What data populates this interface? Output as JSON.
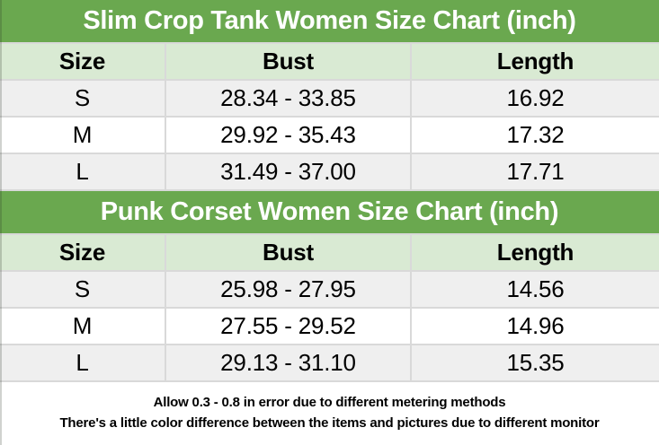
{
  "colors": {
    "title_bg": "#6aa84f",
    "title_text": "#ffffff",
    "header_bg": "#d9ead3",
    "row_alt_bg": "#efefef",
    "row_bg": "#ffffff",
    "border": "#d9d9d9",
    "text": "#000000"
  },
  "charts": [
    {
      "title": "Slim Crop Tank Women Size Chart (inch)",
      "columns": [
        "Size",
        "Bust",
        "Length"
      ],
      "rows": [
        {
          "size": "S",
          "bust": "28.34 - 33.85",
          "length": "16.92"
        },
        {
          "size": "M",
          "bust": "29.92 - 35.43",
          "length": "17.32"
        },
        {
          "size": "L",
          "bust": "31.49 - 37.00",
          "length": "17.71"
        }
      ]
    },
    {
      "title": "Punk Corset Women Size Chart (inch)",
      "columns": [
        "Size",
        "Bust",
        "Length"
      ],
      "rows": [
        {
          "size": "S",
          "bust": "25.98 - 27.95",
          "length": "14.56"
        },
        {
          "size": "M",
          "bust": "27.55 - 29.52",
          "length": "14.96"
        },
        {
          "size": "L",
          "bust": "29.13 - 31.10",
          "length": "15.35"
        }
      ]
    }
  ],
  "notes": [
    "Allow 0.3 - 0.8 in error due to different metering methods",
    "There's a little color difference between the items and pictures due to different monitor"
  ]
}
